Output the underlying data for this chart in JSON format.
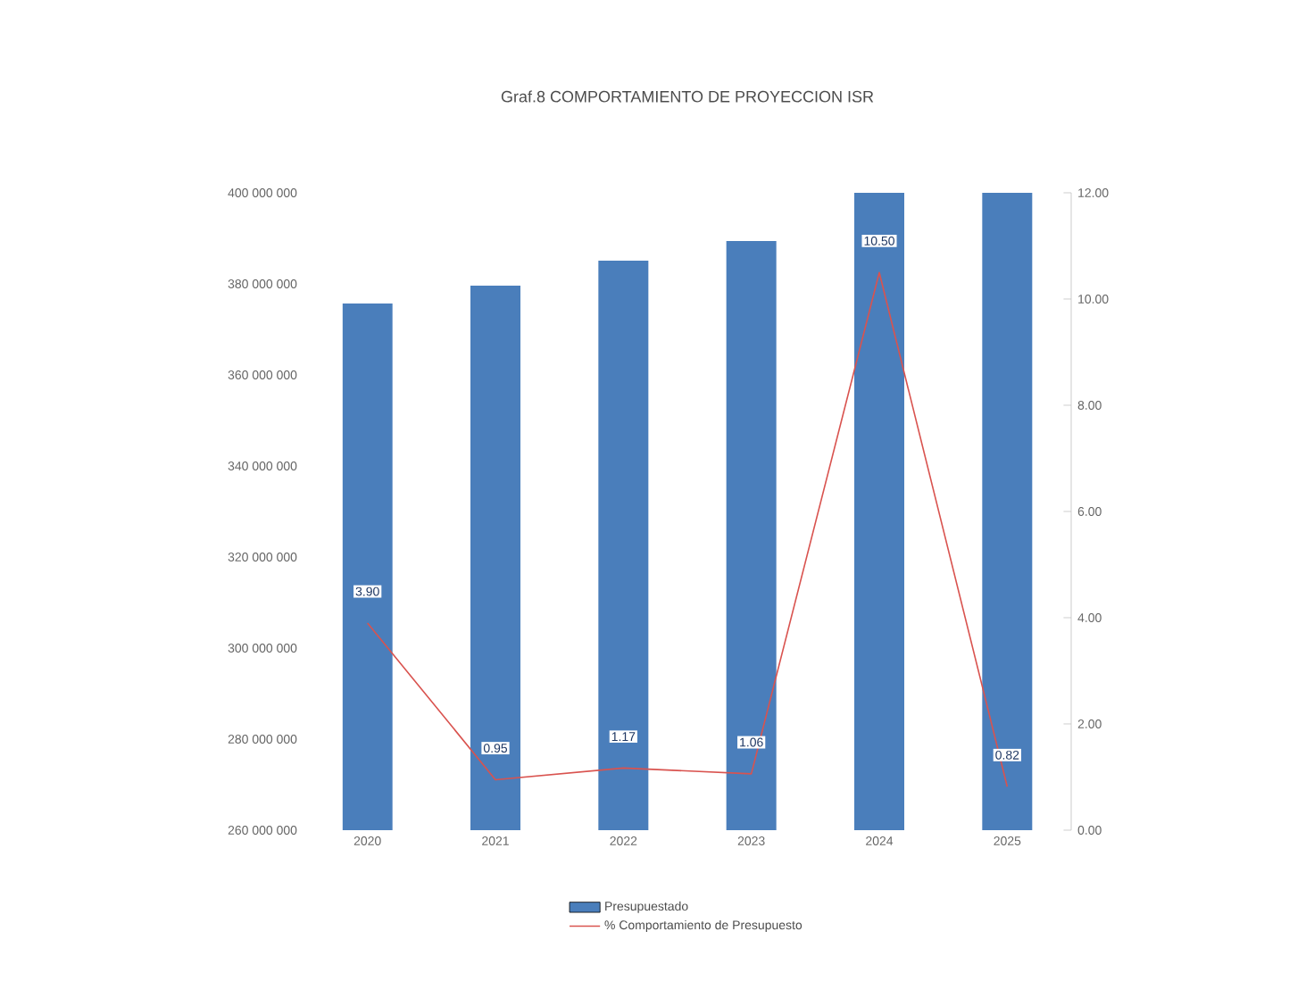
{
  "chart_data": {
    "type": "bar",
    "title": "Graf.8 COMPORTAMIENTO DE PROYECCION ISR",
    "categories": [
      "2020",
      "2021",
      "2022",
      "2023",
      "2024",
      "2025"
    ],
    "series": [
      {
        "name": "Presupuestado",
        "color": "#4a7ebb",
        "values": [
          375700000,
          379600000,
          385100000,
          389400000,
          400000000,
          400000000
        ]
      },
      {
        "name": "% Comportamiento de Presupuesto",
        "type": "line",
        "axis": "y2",
        "color": "#d9534f",
        "values": [
          3.9,
          0.95,
          1.17,
          1.06,
          10.5,
          0.82
        ],
        "value_labels": [
          "3.90",
          "0.95",
          "1.17",
          "1.06",
          "10.50",
          "0.82"
        ]
      }
    ],
    "ylim": [
      260000000,
      400000000
    ],
    "yticks": [
      {
        "value": 260000000,
        "label": "260 000 000"
      },
      {
        "value": 280000000,
        "label": "280 000 000"
      },
      {
        "value": 300000000,
        "label": "300 000 000"
      },
      {
        "value": 320000000,
        "label": "320 000 000"
      },
      {
        "value": 340000000,
        "label": "340 000 000"
      },
      {
        "value": 360000000,
        "label": "360 000 000"
      },
      {
        "value": 380000000,
        "label": "380 000 000"
      },
      {
        "value": 400000000,
        "label": "400 000 000"
      }
    ],
    "y2lim": [
      0,
      12
    ],
    "y2ticks": [
      {
        "value": 0,
        "label": "0.00"
      },
      {
        "value": 2,
        "label": "2.00"
      },
      {
        "value": 4,
        "label": "4.00"
      },
      {
        "value": 6,
        "label": "6.00"
      },
      {
        "value": 8,
        "label": "8.00"
      },
      {
        "value": 10,
        "label": "10.00"
      },
      {
        "value": 12,
        "label": "12.00"
      }
    ],
    "legend": "bottom",
    "grid": false,
    "marker": "none",
    "line_style": "solid"
  }
}
